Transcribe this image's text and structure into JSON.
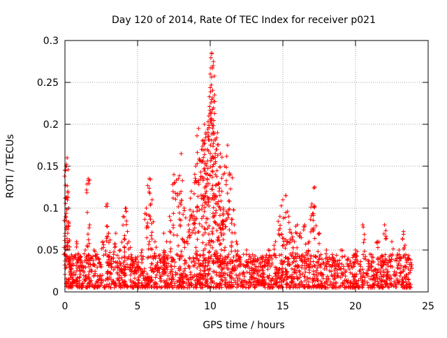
{
  "chart_data": {
    "type": "scatter",
    "title": "Day 120 of 2014, Rate Of TEC Index for receiver p021",
    "xlabel": "GPS time / hours",
    "ylabel": "ROTI / TECUs",
    "xlim": [
      0,
      25
    ],
    "ylim": [
      0,
      0.3
    ],
    "x_ticks": [
      0,
      5,
      10,
      15,
      20,
      25
    ],
    "x_tick_labels": [
      "0",
      "5",
      "10",
      "15",
      "20",
      "25"
    ],
    "y_ticks": [
      0,
      0.05,
      0.1,
      0.15,
      0.2,
      0.25,
      0.3
    ],
    "y_tick_labels": [
      "0",
      "0.05",
      "0.1",
      "0.15",
      "0.2",
      "0.25",
      "0.3"
    ],
    "grid": true,
    "marker": "+",
    "color": "#ff0000",
    "series": [
      {
        "name": "ROTI",
        "x": [
          0.05,
          0.1,
          0.15,
          0.2,
          0.25,
          0.3,
          0.35,
          0.5,
          0.8,
          1.0,
          1.2,
          1.4,
          1.6,
          1.7,
          2.0,
          2.3,
          2.6,
          2.9,
          3.0,
          3.2,
          3.5,
          3.8,
          4.0,
          4.2,
          4.4,
          4.6,
          5.0,
          5.3,
          5.6,
          5.8,
          6.0,
          6.2,
          6.5,
          6.8,
          7.0,
          7.2,
          7.5,
          7.8,
          8.0,
          8.2,
          8.5,
          8.7,
          8.9,
          9.0,
          9.2,
          9.4,
          9.5,
          9.6,
          9.7,
          9.8,
          9.9,
          10.0,
          10.1,
          10.2,
          10.3,
          10.4,
          10.5,
          10.6,
          10.7,
          10.8,
          10.9,
          11.0,
          11.2,
          11.4,
          11.6,
          11.8,
          12.0,
          12.5,
          13.0,
          13.5,
          14.0,
          14.5,
          14.8,
          15.0,
          15.2,
          15.4,
          15.6,
          15.8,
          16.0,
          16.2,
          16.5,
          16.8,
          17.0,
          17.2,
          17.5,
          18.0,
          18.5,
          19.0,
          19.5,
          20.0,
          20.5,
          21.0,
          21.5,
          22.0,
          22.5,
          23.0,
          23.3,
          23.6,
          23.8
        ],
        "y": [
          0.09,
          0.15,
          0.16,
          0.12,
          0.1,
          0.04,
          0.03,
          0.02,
          0.06,
          0.04,
          0.03,
          0.05,
          0.135,
          0.08,
          0.05,
          0.04,
          0.06,
          0.105,
          0.07,
          0.04,
          0.07,
          0.05,
          0.09,
          0.1,
          0.06,
          0.04,
          0.03,
          0.05,
          0.1,
          0.135,
          0.11,
          0.06,
          0.04,
          0.07,
          0.06,
          0.09,
          0.14,
          0.135,
          0.165,
          0.1,
          0.08,
          0.12,
          0.09,
          0.15,
          0.195,
          0.17,
          0.18,
          0.2,
          0.19,
          0.17,
          0.21,
          0.26,
          0.285,
          0.27,
          0.235,
          0.17,
          0.19,
          0.13,
          0.165,
          0.12,
          0.1,
          0.15,
          0.175,
          0.14,
          0.098,
          0.06,
          0.04,
          0.05,
          0.04,
          0.04,
          0.05,
          0.06,
          0.09,
          0.11,
          0.115,
          0.09,
          0.07,
          0.06,
          0.08,
          0.07,
          0.08,
          0.06,
          0.105,
          0.125,
          0.07,
          0.05,
          0.04,
          0.05,
          0.04,
          0.05,
          0.08,
          0.045,
          0.06,
          0.08,
          0.06,
          0.05,
          0.072,
          0.04,
          0.035
        ],
        "baseline_min": 0.005,
        "baseline_max": 0.045
      }
    ]
  }
}
